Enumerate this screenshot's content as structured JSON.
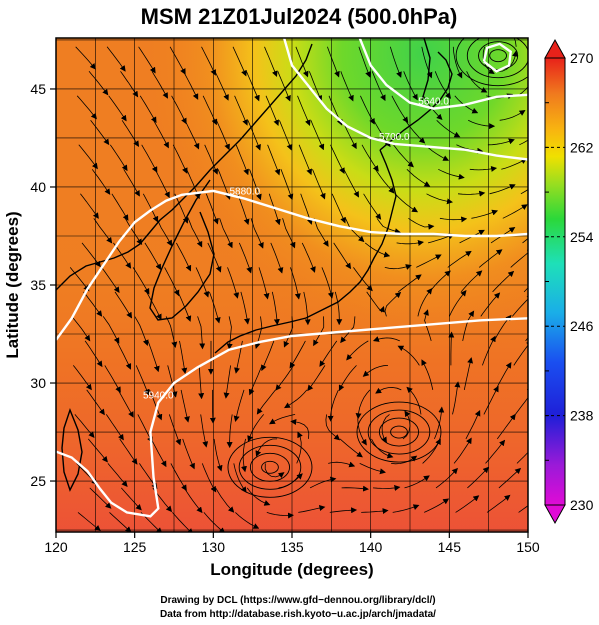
{
  "title": "MSM 21Z01Jul2024 (500.0hPa)",
  "map": {
    "x_axis": {
      "label": "Longitude (degrees)",
      "range": [
        120,
        150
      ],
      "ticks": [
        120,
        125,
        130,
        135,
        140,
        145,
        150
      ]
    },
    "y_axis": {
      "label": "Latitude  (degrees)",
      "range": [
        22.4,
        47.6
      ],
      "ticks": [
        25,
        30,
        35,
        40,
        45
      ]
    },
    "colorbar": {
      "range": [
        230,
        270
      ],
      "labels": [
        230,
        238,
        246,
        254,
        262,
        270
      ]
    },
    "contours": [
      {
        "label": "5880.0",
        "lat_points": [
          [
            120,
            32.2
          ],
          [
            121,
            33.3
          ],
          [
            122,
            34.8
          ],
          [
            123,
            36.0
          ],
          [
            124,
            37.2
          ],
          [
            125,
            38.2
          ],
          [
            126,
            38.8
          ],
          [
            127,
            39.3
          ],
          [
            128,
            39.6
          ],
          [
            130,
            39.8
          ],
          [
            132,
            39.4
          ],
          [
            134,
            38.9
          ],
          [
            136,
            38.4
          ],
          [
            138,
            38.0
          ],
          [
            140,
            37.7
          ],
          [
            142,
            37.6
          ],
          [
            144,
            37.6
          ],
          [
            146,
            37.5
          ],
          [
            148,
            37.5
          ],
          [
            150,
            37.6
          ]
        ]
      },
      {
        "label": "5940.0",
        "lat_points": [
          [
            120,
            26.5
          ],
          [
            121,
            26.2
          ],
          [
            122,
            25.5
          ],
          [
            122.8,
            24.6
          ],
          [
            123.5,
            23.9
          ],
          [
            124.5,
            23.4
          ],
          [
            126,
            23.2
          ],
          [
            126.5,
            23.6
          ],
          [
            126.2,
            25.2
          ],
          [
            126,
            27.5
          ],
          [
            126.5,
            29.0
          ],
          [
            127.5,
            30.0
          ],
          [
            129,
            30.8
          ],
          [
            131,
            31.7
          ],
          [
            133,
            32.1
          ],
          [
            135,
            32.4
          ],
          [
            138,
            32.6
          ],
          [
            141,
            32.8
          ],
          [
            144,
            33.0
          ],
          [
            147,
            33.2
          ],
          [
            150,
            33.3
          ]
        ]
      },
      {
        "label": "5700.0",
        "lat_points": [
          [
            134.5,
            47.6
          ],
          [
            135,
            46.2
          ],
          [
            136,
            45.2
          ],
          [
            137.2,
            44.0
          ],
          [
            138.5,
            43.1
          ],
          [
            140,
            42.5
          ],
          [
            141.5,
            42.2
          ],
          [
            143,
            42.1
          ],
          [
            144.5,
            42.0
          ],
          [
            146,
            41.9
          ],
          [
            148,
            41.6
          ],
          [
            150,
            41.4
          ]
        ]
      },
      {
        "label": "5640.0",
        "lat_points": [
          [
            139.3,
            47.6
          ],
          [
            140,
            46.2
          ],
          [
            141,
            45.2
          ],
          [
            142.5,
            44.3
          ],
          [
            144,
            44.0
          ],
          [
            146,
            44.2
          ],
          [
            148,
            44.6
          ],
          [
            150,
            44.7
          ]
        ]
      },
      {
        "label": "",
        "lat_points": [
          [
            147.2,
            46.4
          ],
          [
            148.0,
            45.9
          ],
          [
            148.8,
            46.2
          ],
          [
            148.9,
            46.9
          ],
          [
            148.2,
            47.3
          ],
          [
            147.4,
            47.1
          ],
          [
            147.2,
            46.4
          ]
        ]
      }
    ],
    "cyclone_centers": [
      {
        "lon": 141.8,
        "lat": 27.5
      },
      {
        "lon": 133.6,
        "lat": 25.7
      },
      {
        "lon": 148.1,
        "lat": 46.7
      }
    ]
  },
  "credits": {
    "line1": "Drawing by DCL (https://www.gfd−dennou.org/library/dcl/)",
    "line2": "Data from http://database.rish.kyoto−u.ac.jp/arch/jmadata/"
  }
}
